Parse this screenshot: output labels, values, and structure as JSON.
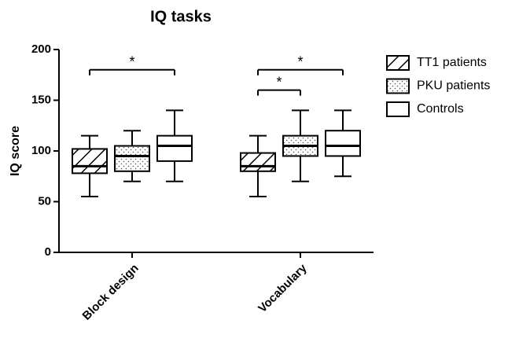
{
  "chart_data": {
    "type": "boxplot",
    "title": "IQ tasks",
    "y_label": "IQ score",
    "categories": [
      "Block design",
      "Vocabulary"
    ],
    "series": [
      {
        "name": "TT1 patients",
        "color": "#000000",
        "pattern": "hatch",
        "values": [
          {
            "min": 55,
            "q1": 78,
            "median": 85,
            "q3": 102,
            "max": 115
          },
          {
            "min": 55,
            "q1": 80,
            "median": 85,
            "q3": 98,
            "max": 115
          }
        ]
      },
      {
        "name": "PKU patients",
        "color": "#000000",
        "pattern": "dots",
        "values": [
          {
            "min": 70,
            "q1": 80,
            "median": 95,
            "q3": 105,
            "max": 120
          },
          {
            "min": 70,
            "q1": 95,
            "median": 105,
            "q3": 115,
            "max": 140
          }
        ]
      },
      {
        "name": "Controls",
        "color": "#000000",
        "pattern": "none",
        "values": [
          {
            "min": 70,
            "q1": 90,
            "median": 105,
            "q3": 115,
            "max": 140
          },
          {
            "min": 75,
            "q1": 95,
            "median": 105,
            "q3": 120,
            "max": 140
          }
        ]
      }
    ],
    "annotations": [
      {
        "text": "*",
        "category": 0,
        "from": 0,
        "to": 2,
        "y": 180
      },
      {
        "text": "*",
        "category": 1,
        "from": 0,
        "to": 2,
        "y": 180
      },
      {
        "text": "*",
        "category": 1,
        "from": 0,
        "to": 1,
        "y": 160
      }
    ],
    "ylim": [
      0,
      200
    ],
    "yticks": [
      0,
      50,
      100,
      150,
      200
    ],
    "grid": false,
    "legend": "right"
  }
}
